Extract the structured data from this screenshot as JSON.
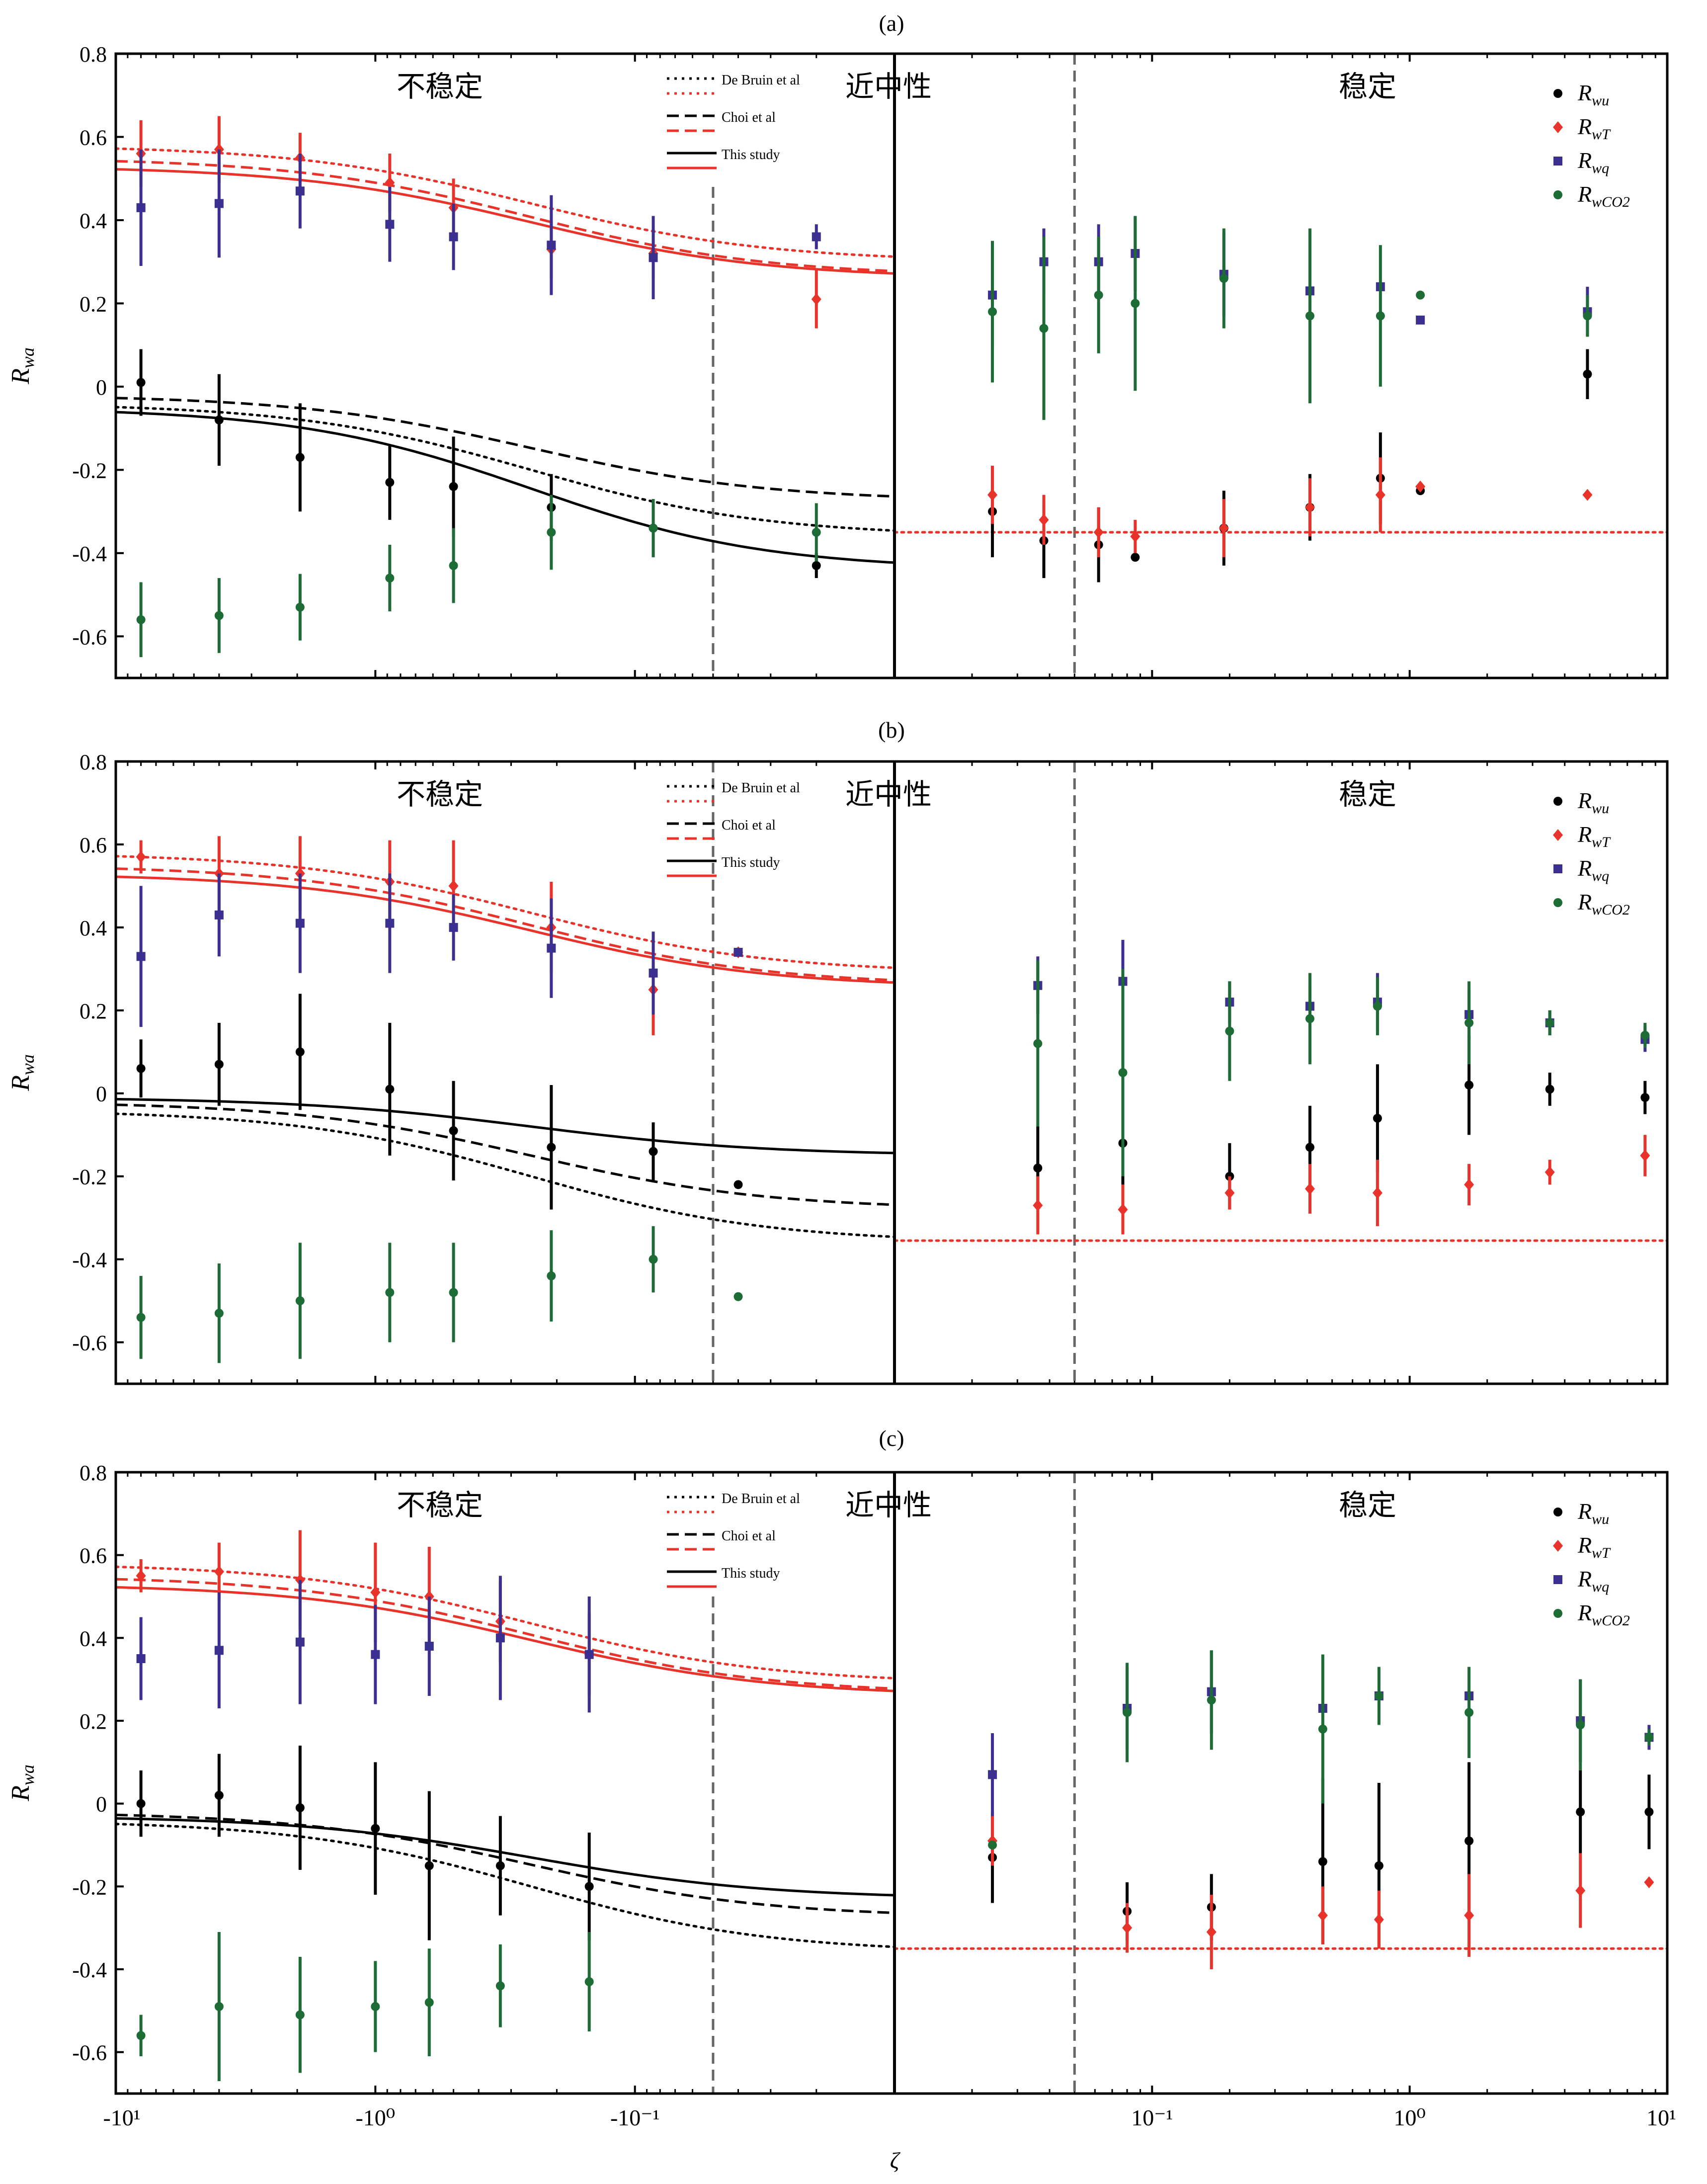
{
  "figure": {
    "x_axis_label": "ζ",
    "x_tick_labels": [
      "-10¹",
      "-10⁰",
      "-10⁻¹",
      "10⁻¹",
      "10⁰",
      "10¹"
    ],
    "y_axis_label": "Rwa",
    "y_tick_labels": [
      "0.8",
      "0.6",
      "0.4",
      "0.2",
      "0",
      "-0.2",
      "-0.4",
      "-0.6"
    ],
    "region_labels": {
      "unstable": "不稳定",
      "near_neutral": "近中性",
      "stable": "稳定"
    },
    "model_legend": [
      "De Bruin et al",
      "Choi et al",
      "This study"
    ],
    "colors": {
      "Rwu": "#000000",
      "RwT": "#e8332a",
      "Rwq": "#3b2f8f",
      "RwCO2": "#1d6b35",
      "axis": "#000000",
      "threshold": "#666666"
    }
  },
  "chart_data": [
    {
      "type": "scatter",
      "panel": "(a)",
      "xscale": "symlog",
      "xlabel": "ζ",
      "ylabel": "Rwa",
      "ylim": [
        -0.7,
        0.8
      ],
      "legend": "top-right",
      "series": [
        {
          "name": "Rwu",
          "marker": "circle",
          "x": [
            -8.0,
            -4.0,
            -1.95,
            -0.88,
            -0.5,
            -0.21,
            -0.085,
            -0.02,
            0.024,
            0.038,
            0.062,
            0.086,
            0.19,
            0.41,
            0.77,
            1.1,
            4.9
          ],
          "y": [
            0.01,
            -0.08,
            -0.17,
            -0.23,
            -0.24,
            -0.29,
            -0.34,
            -0.43,
            -0.3,
            -0.37,
            -0.38,
            -0.41,
            -0.34,
            -0.29,
            -0.22,
            -0.25,
            0.03
          ],
          "err": [
            0.08,
            0.11,
            0.13,
            0.09,
            0.12,
            0.08,
            0.07,
            0.03,
            0.11,
            0.09,
            0.09,
            0.0,
            0.09,
            0.08,
            0.11,
            0.0,
            0.06
          ]
        },
        {
          "name": "RwT",
          "marker": "diamond",
          "x": [
            -8.0,
            -4.0,
            -1.95,
            -0.88,
            -0.5,
            -0.21,
            -0.085,
            -0.02,
            0.024,
            0.038,
            0.062,
            0.086,
            0.19,
            0.41,
            0.77,
            1.1,
            4.9
          ],
          "y": [
            0.56,
            0.57,
            0.55,
            0.49,
            0.43,
            0.33,
            0.32,
            0.21,
            -0.26,
            -0.32,
            -0.35,
            -0.36,
            -0.34,
            -0.29,
            -0.26,
            -0.24,
            -0.26
          ],
          "err": [
            0.08,
            0.08,
            0.06,
            0.07,
            0.07,
            0.07,
            0.06,
            0.07,
            0.07,
            0.06,
            0.06,
            0.04,
            0.07,
            0.07,
            0.09,
            0.0,
            0.0
          ]
        },
        {
          "name": "Rwq",
          "marker": "square",
          "x": [
            -8.0,
            -4.0,
            -1.95,
            -0.88,
            -0.5,
            -0.21,
            -0.085,
            -0.02,
            0.024,
            0.038,
            0.062,
            0.086,
            0.19,
            0.41,
            0.77,
            1.1,
            4.9
          ],
          "y": [
            0.43,
            0.44,
            0.47,
            0.39,
            0.36,
            0.34,
            0.31,
            0.36,
            0.22,
            0.3,
            0.3,
            0.32,
            0.27,
            0.23,
            0.24,
            0.16,
            0.18
          ],
          "err": [
            0.14,
            0.13,
            0.09,
            0.09,
            0.08,
            0.12,
            0.1,
            0.03,
            0.13,
            0.08,
            0.09,
            0.09,
            0.1,
            0.0,
            0.0,
            0.0,
            0.06
          ]
        },
        {
          "name": "RwCO2",
          "marker": "circle",
          "x": [
            -8.0,
            -4.0,
            -1.95,
            -0.88,
            -0.5,
            -0.21,
            -0.085,
            -0.02,
            0.024,
            0.038,
            0.062,
            0.086,
            0.19,
            0.41,
            0.77,
            1.1,
            4.9
          ],
          "y": [
            -0.56,
            -0.55,
            -0.53,
            -0.46,
            -0.43,
            -0.35,
            -0.34,
            -0.35,
            0.18,
            0.14,
            0.22,
            0.2,
            0.26,
            0.17,
            0.17,
            0.22,
            0.17
          ],
          "err": [
            0.09,
            0.09,
            0.08,
            0.08,
            0.09,
            0.09,
            0.07,
            0.07,
            0.17,
            0.22,
            0.14,
            0.21,
            0.12,
            0.21,
            0.17,
            0.0,
            0.05
          ]
        }
      ],
      "models": {
        "RwT": {
          "De Bruin et al": {
            "near": 0.58,
            "far": 0.3
          },
          "Choi et al": {
            "near": 0.55,
            "far": 0.265
          },
          "This study": {
            "near": 0.53,
            "far": 0.26
          }
        },
        "Rwu": {
          "De Bruin et al": {
            "near": -0.04,
            "far": -0.36
          },
          "Choi et al": {
            "near": -0.02,
            "far": -0.275
          },
          "This study": {
            "near": -0.05,
            "far": -0.44
          }
        },
        "stable_reference": -0.35
      },
      "regime_threshold_left": -0.05,
      "regime_threshold_right": 0.05
    },
    {
      "type": "scatter",
      "panel": "(b)",
      "xscale": "symlog",
      "xlabel": "ζ",
      "ylabel": "Rwa",
      "ylim": [
        -0.7,
        0.8
      ],
      "legend": "top-right",
      "series": [
        {
          "name": "Rwu",
          "marker": "circle",
          "x": [
            -8.0,
            -4.0,
            -1.95,
            -0.88,
            -0.5,
            -0.21,
            -0.085,
            -0.04,
            0.036,
            0.077,
            0.2,
            0.41,
            0.75,
            1.7,
            3.5,
            8.2
          ],
          "y": [
            0.06,
            0.07,
            0.1,
            0.01,
            -0.09,
            -0.13,
            -0.14,
            -0.22,
            -0.18,
            -0.12,
            -0.2,
            -0.13,
            -0.06,
            0.02,
            0.01,
            -0.01
          ],
          "err": [
            0.07,
            0.1,
            0.14,
            0.16,
            0.12,
            0.15,
            0.07,
            0.0,
            0.1,
            0.1,
            0.08,
            0.1,
            0.13,
            0.12,
            0.04,
            0.04
          ]
        },
        {
          "name": "RwT",
          "marker": "diamond",
          "x": [
            -8.0,
            -4.0,
            -1.95,
            -0.88,
            -0.5,
            -0.21,
            -0.085,
            -0.04,
            0.036,
            0.077,
            0.2,
            0.41,
            0.75,
            1.7,
            3.5,
            8.2
          ],
          "y": [
            0.57,
            0.53,
            0.53,
            0.51,
            0.5,
            0.4,
            0.25,
            0.34,
            -0.27,
            -0.28,
            -0.24,
            -0.23,
            -0.24,
            -0.22,
            -0.19,
            -0.15
          ],
          "err": [
            0.04,
            0.09,
            0.09,
            0.1,
            0.11,
            0.11,
            0.11,
            0.0,
            0.07,
            0.06,
            0.04,
            0.06,
            0.08,
            0.05,
            0.03,
            0.05
          ]
        },
        {
          "name": "Rwq",
          "marker": "square",
          "x": [
            -8.0,
            -4.0,
            -1.95,
            -0.88,
            -0.5,
            -0.21,
            -0.085,
            -0.04,
            0.036,
            0.077,
            0.2,
            0.41,
            0.75,
            1.7,
            3.5,
            8.2
          ],
          "y": [
            0.33,
            0.43,
            0.41,
            0.41,
            0.4,
            0.35,
            0.29,
            0.34,
            0.26,
            0.27,
            0.22,
            0.21,
            0.22,
            0.19,
            0.17,
            0.13
          ],
          "err": [
            0.17,
            0.1,
            0.12,
            0.12,
            0.08,
            0.12,
            0.1,
            0.0,
            0.07,
            0.1,
            0.05,
            0.05,
            0.07,
            0.06,
            0.03,
            0.03
          ]
        },
        {
          "name": "RwCO2",
          "marker": "circle",
          "x": [
            -8.0,
            -4.0,
            -1.95,
            -0.88,
            -0.5,
            -0.21,
            -0.085,
            -0.04,
            0.036,
            0.077,
            0.2,
            0.41,
            0.75,
            1.7,
            3.5,
            8.2
          ],
          "y": [
            -0.54,
            -0.53,
            -0.5,
            -0.48,
            -0.48,
            -0.44,
            -0.4,
            -0.49,
            0.12,
            0.05,
            0.15,
            0.18,
            0.21,
            0.17,
            0.17,
            0.14
          ],
          "err": [
            0.1,
            0.12,
            0.14,
            0.12,
            0.12,
            0.11,
            0.08,
            0.0,
            0.2,
            0.25,
            0.12,
            0.11,
            0.07,
            0.1,
            0.03,
            0.03
          ]
        }
      ],
      "models": {
        "RwT": {
          "De Bruin et al": {
            "near": 0.58,
            "far": 0.29
          },
          "Choi et al": {
            "near": 0.55,
            "far": 0.26
          },
          "This study": {
            "near": 0.53,
            "far": 0.255
          }
        },
        "Rwu": {
          "De Bruin et al": {
            "near": -0.04,
            "far": -0.36
          },
          "Choi et al": {
            "near": -0.02,
            "far": -0.28
          },
          "This study": {
            "near": -0.01,
            "far": -0.15
          }
        },
        "stable_reference": -0.355
      },
      "regime_threshold_left": -0.05,
      "regime_threshold_right": 0.05
    },
    {
      "type": "scatter",
      "panel": "(c)",
      "xscale": "symlog",
      "xlabel": "ζ",
      "ylabel": "Rwa",
      "ylim": [
        -0.7,
        0.8
      ],
      "legend": "top-right",
      "series": [
        {
          "name": "Rwu",
          "marker": "circle",
          "x": [
            -8.0,
            -4.0,
            -1.95,
            -1.0,
            -0.62,
            -0.33,
            -0.15,
            0.024,
            0.08,
            0.17,
            0.46,
            0.76,
            1.7,
            4.6,
            8.5
          ],
          "y": [
            0.0,
            0.02,
            -0.01,
            -0.06,
            -0.15,
            -0.15,
            -0.2,
            -0.13,
            -0.26,
            -0.25,
            -0.14,
            -0.15,
            -0.09,
            -0.02,
            -0.02
          ],
          "err": [
            0.08,
            0.1,
            0.15,
            0.16,
            0.18,
            0.12,
            0.13,
            0.11,
            0.07,
            0.08,
            0.2,
            0.2,
            0.19,
            0.1,
            0.09
          ]
        },
        {
          "name": "RwT",
          "marker": "diamond",
          "x": [
            -8.0,
            -4.0,
            -1.95,
            -1.0,
            -0.62,
            -0.33,
            -0.15,
            0.024,
            0.08,
            0.17,
            0.46,
            0.76,
            1.7,
            4.6,
            8.5
          ],
          "y": [
            0.55,
            0.56,
            0.54,
            0.51,
            0.5,
            0.44,
            0.36,
            -0.09,
            -0.3,
            -0.31,
            -0.27,
            -0.28,
            -0.27,
            -0.21,
            -0.19
          ],
          "err": [
            0.04,
            0.07,
            0.12,
            0.12,
            0.12,
            0.1,
            0.1,
            0.06,
            0.06,
            0.09,
            0.07,
            0.07,
            0.1,
            0.09,
            0.0
          ]
        },
        {
          "name": "Rwq",
          "marker": "square",
          "x": [
            -8.0,
            -4.0,
            -1.95,
            -1.0,
            -0.62,
            -0.33,
            -0.15,
            0.024,
            0.08,
            0.17,
            0.46,
            0.76,
            1.7,
            4.6,
            8.5
          ],
          "y": [
            0.35,
            0.37,
            0.39,
            0.36,
            0.38,
            0.4,
            0.36,
            0.07,
            0.23,
            0.27,
            0.23,
            0.26,
            0.26,
            0.2,
            0.16
          ],
          "err": [
            0.1,
            0.14,
            0.15,
            0.12,
            0.12,
            0.15,
            0.14,
            0.1,
            0.1,
            0.1,
            0.0,
            0.0,
            0.0,
            0.1,
            0.03
          ]
        },
        {
          "name": "RwCO2",
          "marker": "circle",
          "x": [
            -8.0,
            -4.0,
            -1.95,
            -1.0,
            -0.62,
            -0.33,
            -0.15,
            0.024,
            0.08,
            0.17,
            0.46,
            0.76,
            1.7,
            4.6,
            8.5
          ],
          "y": [
            -0.56,
            -0.49,
            -0.51,
            -0.49,
            -0.48,
            -0.44,
            -0.43,
            -0.1,
            0.22,
            0.25,
            0.18,
            0.26,
            0.22,
            0.19,
            0.16
          ],
          "err": [
            0.05,
            0.18,
            0.14,
            0.11,
            0.13,
            0.1,
            0.12,
            0.0,
            0.12,
            0.12,
            0.18,
            0.07,
            0.11,
            0.11,
            0.02
          ]
        }
      ],
      "models": {
        "RwT": {
          "De Bruin et al": {
            "near": 0.58,
            "far": 0.29
          },
          "Choi et al": {
            "near": 0.55,
            "far": 0.265
          },
          "This study": {
            "near": 0.53,
            "far": 0.26
          }
        },
        "Rwu": {
          "De Bruin et al": {
            "near": -0.04,
            "far": -0.36
          },
          "Choi et al": {
            "near": -0.02,
            "far": -0.275
          },
          "This study": {
            "near": -0.03,
            "far": -0.23
          }
        },
        "stable_reference": -0.35
      },
      "regime_threshold_left": -0.05,
      "regime_threshold_right": 0.05
    }
  ]
}
